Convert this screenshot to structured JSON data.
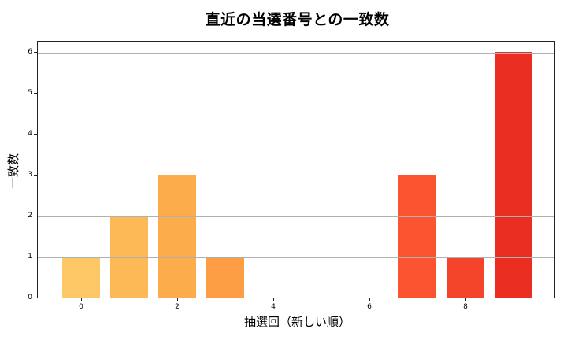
{
  "chart_data": {
    "type": "bar",
    "title": "直近の当選番号との一致数",
    "xlabel": "抽選回（新しい順）",
    "ylabel": "一致数",
    "categories": [
      0,
      1,
      2,
      3,
      4,
      5,
      6,
      7,
      8,
      9
    ],
    "values": [
      1,
      2,
      3,
      1,
      0,
      0,
      0,
      3,
      1,
      6
    ],
    "colors": [
      "#fdc766",
      "#feb957",
      "#fdac4b",
      "#fd9e44",
      "#fd8d3c",
      "#fc7234",
      "#fc582c",
      "#fc5430",
      "#f44429",
      "#ea2e22"
    ],
    "xticks": [
      0,
      2,
      4,
      6,
      8
    ],
    "yticks": [
      0,
      1,
      2,
      3,
      4,
      5,
      6
    ],
    "xlim": [
      -0.95,
      9.8
    ],
    "ylim": [
      0,
      6.3
    ],
    "grid": "y"
  }
}
